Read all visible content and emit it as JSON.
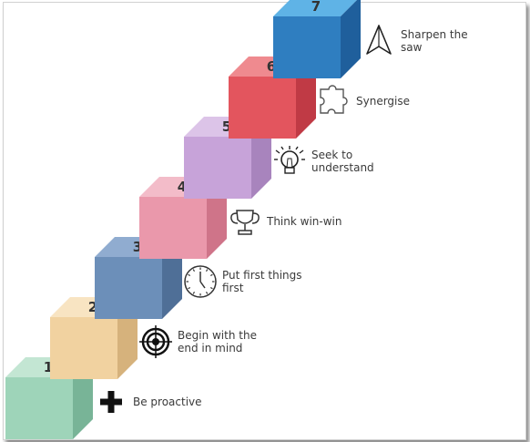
{
  "steps": [
    {
      "number": "1",
      "label": [
        "Be proactive"
      ],
      "icon": "plus-icon",
      "colors": {
        "front": "#9ed4b9",
        "top": "#c3e6d3",
        "side": "#78b497"
      }
    },
    {
      "number": "2",
      "label": [
        "Begin with the",
        "end in mind"
      ],
      "icon": "target-icon",
      "colors": {
        "front": "#f1d2a0",
        "top": "#f8e4c2",
        "side": "#d6b27c"
      }
    },
    {
      "number": "3",
      "label": [
        "Put first things",
        "first"
      ],
      "icon": "clock-icon",
      "colors": {
        "front": "#6c8fb9",
        "top": "#90acd0",
        "side": "#4f6f97"
      }
    },
    {
      "number": "4",
      "label": [
        "Think win-win"
      ],
      "icon": "trophy-icon",
      "colors": {
        "front": "#ea98ab",
        "top": "#f3bcc9",
        "side": "#cf7489"
      }
    },
    {
      "number": "5",
      "label": [
        "Seek to",
        "understand"
      ],
      "icon": "lightbulb-icon",
      "colors": {
        "front": "#c7a3d9",
        "top": "#dcc4e8",
        "side": "#a884bd"
      }
    },
    {
      "number": "6",
      "label": [
        "Synergise"
      ],
      "icon": "puzzle-icon",
      "colors": {
        "front": "#e3555e",
        "top": "#ef8a8f",
        "side": "#c03a45"
      }
    },
    {
      "number": "7",
      "label": [
        "Sharpen the",
        "saw"
      ],
      "icon": "compass-icon",
      "colors": {
        "front": "#2f7ec0",
        "top": "#5fb3e6",
        "side": "#1f5f9c"
      }
    }
  ]
}
